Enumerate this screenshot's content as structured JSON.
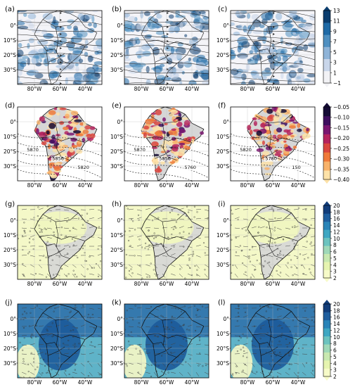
{
  "colors": {
    "land": "#d6d6d6",
    "blue_dark": "#0b4f8a",
    "stream": "#222222",
    "contour": "#333333"
  },
  "chart_data": [
    {
      "type": "heatmap",
      "rows": [
        {
          "panels": [
            {
              "label": "(a)"
            },
            {
              "label": "(b)"
            },
            {
              "label": "(c)"
            }
          ],
          "y_ticks": [
            "0°",
            "10°S",
            "20°S",
            "30°S"
          ],
          "x_ticks": [
            "80°W",
            "60°W",
            "40°W"
          ],
          "overlay": "streamlines",
          "colorbar": {
            "ticks": [
              "13",
              "11",
              "9",
              "7",
              "5",
              "3",
              "1",
              "−1"
            ],
            "range": [
              -1,
              13
            ],
            "colors": [
              "#f2f2f5",
              "#c9d6ea",
              "#8fb4d8",
              "#4f8fc0",
              "#1f6aa6",
              "#0b3d6e"
            ]
          }
        },
        {
          "panels": [
            {
              "label": "(d)",
              "contour_labels": [
                "5870",
                "5856",
                "5820"
              ]
            },
            {
              "label": "(e)",
              "contour_labels": [
                "5870",
                "5856",
                "5760"
              ]
            },
            {
              "label": "(f)",
              "contour_labels": [
                "5820",
                "5780",
                "150"
              ]
            }
          ],
          "y_ticks": [
            "0°",
            "10°S",
            "20°S",
            "30°S"
          ],
          "x_ticks": [
            "80°W",
            "60°W",
            "40°W"
          ],
          "overlay": "geopotential_contours",
          "colorbar": {
            "ticks": [
              "−0.05",
              "−0.10",
              "−0.15",
              "−0.20",
              "−0.25",
              "−0.30",
              "−0.35",
              "−0.40"
            ],
            "range": [
              -0.4,
              -0.05
            ],
            "colors": [
              "#fde2a8",
              "#f8b26a",
              "#ef7a3a",
              "#d9473f",
              "#b5245e",
              "#7a1670",
              "#3e0e5e",
              "#140b34"
            ]
          }
        },
        {
          "panels": [
            {
              "label": "(g)"
            },
            {
              "label": "(h)"
            },
            {
              "label": "(i)"
            }
          ],
          "y_ticks": [
            "0°",
            "10°S",
            "20°S",
            "30°S"
          ],
          "x_ticks": [
            "80°W",
            "60°W",
            "40°W"
          ],
          "overlay": "wind_barbs_and_dots",
          "colorbar": {
            "ticks": [
              "20",
              "18",
              "16",
              "14",
              "12",
              "10",
              "8",
              "6",
              "5",
              "4",
              "3",
              "2"
            ],
            "range": [
              2,
              20
            ],
            "colors": [
              "#f7fbc8",
              "#e6f4b0",
              "#c8e8b0",
              "#9fd8b8",
              "#6cc3bf",
              "#3fa7c2",
              "#2a84b8",
              "#1f5e9e",
              "#123d7a"
            ]
          }
        },
        {
          "panels": [
            {
              "label": "(j)"
            },
            {
              "label": "(k)"
            },
            {
              "label": "(l)"
            }
          ],
          "y_ticks": [
            "0°",
            "10°S",
            "20°S",
            "30°S"
          ],
          "x_ticks": [
            "80°W",
            "60°W",
            "40°W"
          ],
          "overlay": "wind_barbs_and_dots",
          "colorbar": {
            "ticks": [
              "20",
              "18",
              "16",
              "14",
              "12",
              "10",
              "8",
              "6",
              "5",
              "4",
              "3",
              "2"
            ],
            "range": [
              2,
              20
            ],
            "colors": [
              "#f7fbc8",
              "#e6f4b0",
              "#c8e8b0",
              "#9fd8b8",
              "#6cc3bf",
              "#3fa7c2",
              "#2a84b8",
              "#1f5e9e",
              "#123d7a"
            ]
          }
        }
      ]
    }
  ]
}
